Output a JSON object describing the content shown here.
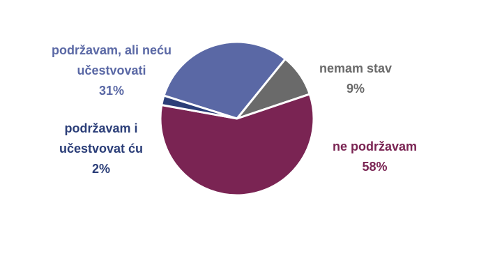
{
  "chart_data": {
    "type": "pie",
    "categories": [
      "podržavam, ali neću učestvovati",
      "nemam stav",
      "ne podržavam",
      "podržavam i učestvovat ću"
    ],
    "values": [
      31,
      9,
      58,
      2
    ],
    "value_labels": [
      "31%",
      "9%",
      "58%",
      "2%"
    ],
    "colors": [
      "#5a68a5",
      "#6a6a6a",
      "#7a2453",
      "#2b3e78"
    ]
  }
}
